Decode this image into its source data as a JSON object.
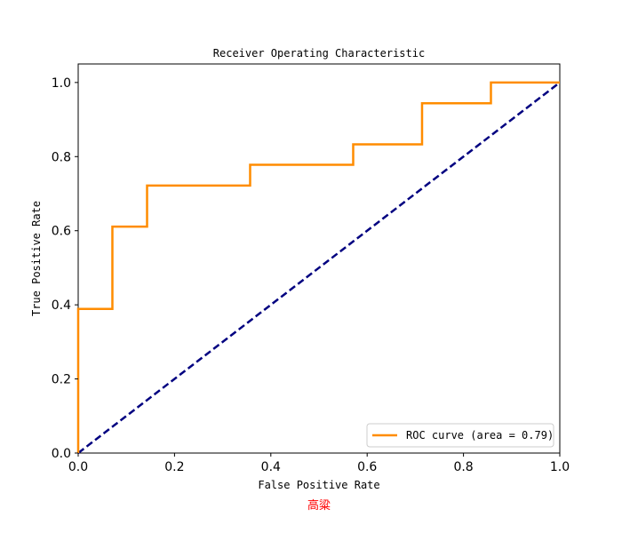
{
  "chart_data": {
    "type": "line",
    "title": "Receiver Operating Characteristic",
    "xlabel": "False Positive Rate",
    "ylabel": "True Positive Rate",
    "xlim": [
      0.0,
      1.0
    ],
    "ylim": [
      0.0,
      1.05
    ],
    "xticks": [
      0.0,
      0.2,
      0.4,
      0.6,
      0.8,
      1.0
    ],
    "yticks": [
      0.0,
      0.2,
      0.4,
      0.6,
      0.8,
      1.0
    ],
    "xtick_labels": [
      "0.0",
      "0.2",
      "0.4",
      "0.6",
      "0.8",
      "1.0"
    ],
    "ytick_labels": [
      "0.0",
      "0.2",
      "0.4",
      "0.6",
      "0.8",
      "1.0"
    ],
    "grid": false,
    "legend_position": "lower-right",
    "series": [
      {
        "name": "ROC curve (area = 0.79)",
        "color": "#ff8c00",
        "style": "solid",
        "step": true,
        "x": [
          0.0,
          0.0,
          0.071,
          0.071,
          0.143,
          0.143,
          0.357,
          0.357,
          0.571,
          0.571,
          0.714,
          0.714,
          0.857,
          0.857,
          1.0
        ],
        "y": [
          0.0,
          0.389,
          0.389,
          0.611,
          0.611,
          0.722,
          0.722,
          0.778,
          0.778,
          0.833,
          0.833,
          0.944,
          0.944,
          1.0,
          1.0
        ]
      },
      {
        "name": "",
        "color": "#000080",
        "style": "dashed",
        "x": [
          0.0,
          1.0
        ],
        "y": [
          0.0,
          1.0
        ]
      }
    ]
  },
  "footer_text": "高粱",
  "footer_color": "#ff0000"
}
